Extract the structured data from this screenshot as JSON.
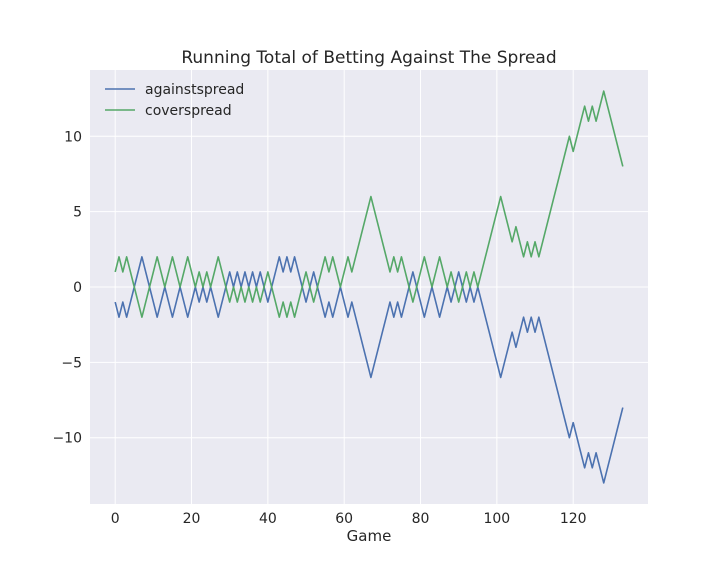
{
  "chart_data": {
    "type": "line",
    "title": "Running Total of Betting Against The Spread",
    "xlabel": "Game",
    "ylabel": "",
    "xlim": [
      -6.6,
      139.6
    ],
    "ylim": [
      -14.4,
      14.4
    ],
    "xticks": [
      0,
      20,
      40,
      60,
      80,
      100,
      120
    ],
    "xtick_labels": [
      "0",
      "20",
      "40",
      "60",
      "80",
      "100",
      "120"
    ],
    "yticks": [
      -10,
      -5,
      0,
      5,
      10
    ],
    "ytick_labels": [
      "−10",
      "−5",
      "0",
      "5",
      "10"
    ],
    "grid": true,
    "legend_position": "top-left",
    "background": "#eaeaf2",
    "series": [
      {
        "name": "againstspread",
        "color": "#4c72b0",
        "x": [
          0,
          1,
          2,
          3,
          4,
          5,
          6,
          7,
          8,
          9,
          10,
          11,
          12,
          13,
          14,
          15,
          16,
          17,
          18,
          19,
          20,
          21,
          22,
          23,
          24,
          25,
          26,
          27,
          28,
          29,
          30,
          31,
          32,
          33,
          34,
          35,
          36,
          37,
          38,
          39,
          40,
          41,
          42,
          43,
          44,
          45,
          46,
          47,
          48,
          49,
          50,
          51,
          52,
          53,
          54,
          55,
          56,
          57,
          58,
          59,
          60,
          61,
          62,
          63,
          64,
          65,
          66,
          67,
          68,
          69,
          70,
          71,
          72,
          73,
          74,
          75,
          76,
          77,
          78,
          79,
          80,
          81,
          82,
          83,
          84,
          85,
          86,
          87,
          88,
          89,
          90,
          91,
          92,
          93,
          94,
          95,
          96,
          97,
          98,
          99,
          100,
          101,
          102,
          103,
          104,
          105,
          106,
          107,
          108,
          109,
          110,
          111,
          112,
          113,
          114,
          115,
          116,
          117,
          118,
          119,
          120,
          121,
          122,
          123,
          124,
          125,
          126,
          127,
          128,
          129,
          130,
          131,
          132,
          133
        ],
        "values": [
          -1,
          -2,
          -1,
          -2,
          -1,
          0,
          1,
          2,
          1,
          0,
          -1,
          -2,
          -1,
          0,
          -1,
          -2,
          -1,
          0,
          -1,
          -2,
          -1,
          0,
          -1,
          0,
          -1,
          0,
          -1,
          -2,
          -1,
          0,
          1,
          0,
          1,
          0,
          1,
          0,
          1,
          0,
          1,
          0,
          -1,
          0,
          1,
          2,
          1,
          2,
          1,
          2,
          1,
          0,
          -1,
          0,
          1,
          0,
          -1,
          -2,
          -1,
          -2,
          -1,
          0,
          -1,
          -2,
          -1,
          -2,
          -3,
          -4,
          -5,
          -6,
          -5,
          -4,
          -3,
          -2,
          -1,
          -2,
          -1,
          -2,
          -1,
          0,
          1,
          0,
          -1,
          -2,
          -1,
          0,
          -1,
          -2,
          -1,
          0,
          -1,
          0,
          1,
          0,
          -1,
          0,
          -1,
          0,
          -1,
          -2,
          -3,
          -4,
          -5,
          -6,
          -5,
          -4,
          -3,
          -4,
          -3,
          -2,
          -3,
          -2,
          -3,
          -2,
          -3,
          -4,
          -5,
          -6,
          -7,
          -8,
          -9,
          -10,
          -9,
          -10,
          -11,
          -12,
          -11,
          -12,
          -11,
          -12,
          -13,
          -12,
          -11,
          -10,
          -9,
          -8
        ]
      },
      {
        "name": "coverspread",
        "color": "#55a868",
        "x": [
          0,
          1,
          2,
          3,
          4,
          5,
          6,
          7,
          8,
          9,
          10,
          11,
          12,
          13,
          14,
          15,
          16,
          17,
          18,
          19,
          20,
          21,
          22,
          23,
          24,
          25,
          26,
          27,
          28,
          29,
          30,
          31,
          32,
          33,
          34,
          35,
          36,
          37,
          38,
          39,
          40,
          41,
          42,
          43,
          44,
          45,
          46,
          47,
          48,
          49,
          50,
          51,
          52,
          53,
          54,
          55,
          56,
          57,
          58,
          59,
          60,
          61,
          62,
          63,
          64,
          65,
          66,
          67,
          68,
          69,
          70,
          71,
          72,
          73,
          74,
          75,
          76,
          77,
          78,
          79,
          80,
          81,
          82,
          83,
          84,
          85,
          86,
          87,
          88,
          89,
          90,
          91,
          92,
          93,
          94,
          95,
          96,
          97,
          98,
          99,
          100,
          101,
          102,
          103,
          104,
          105,
          106,
          107,
          108,
          109,
          110,
          111,
          112,
          113,
          114,
          115,
          116,
          117,
          118,
          119,
          120,
          121,
          122,
          123,
          124,
          125,
          126,
          127,
          128,
          129,
          130,
          131,
          132,
          133
        ],
        "values": [
          1,
          2,
          1,
          2,
          1,
          0,
          -1,
          -2,
          -1,
          0,
          1,
          2,
          1,
          0,
          1,
          2,
          1,
          0,
          1,
          2,
          1,
          0,
          1,
          0,
          1,
          0,
          1,
          2,
          1,
          0,
          -1,
          0,
          -1,
          0,
          -1,
          0,
          -1,
          0,
          -1,
          0,
          1,
          0,
          -1,
          -2,
          -1,
          -2,
          -1,
          -2,
          -1,
          0,
          1,
          0,
          -1,
          0,
          1,
          2,
          1,
          2,
          1,
          0,
          1,
          2,
          1,
          2,
          3,
          4,
          5,
          6,
          5,
          4,
          3,
          2,
          1,
          2,
          1,
          2,
          1,
          0,
          -1,
          0,
          1,
          2,
          1,
          0,
          1,
          2,
          1,
          0,
          1,
          0,
          -1,
          0,
          1,
          0,
          1,
          0,
          1,
          2,
          3,
          4,
          5,
          6,
          5,
          4,
          3,
          4,
          3,
          2,
          3,
          2,
          3,
          2,
          3,
          4,
          5,
          6,
          7,
          8,
          9,
          10,
          9,
          10,
          11,
          12,
          11,
          12,
          11,
          12,
          13,
          12,
          11,
          10,
          9,
          8
        ]
      }
    ]
  }
}
